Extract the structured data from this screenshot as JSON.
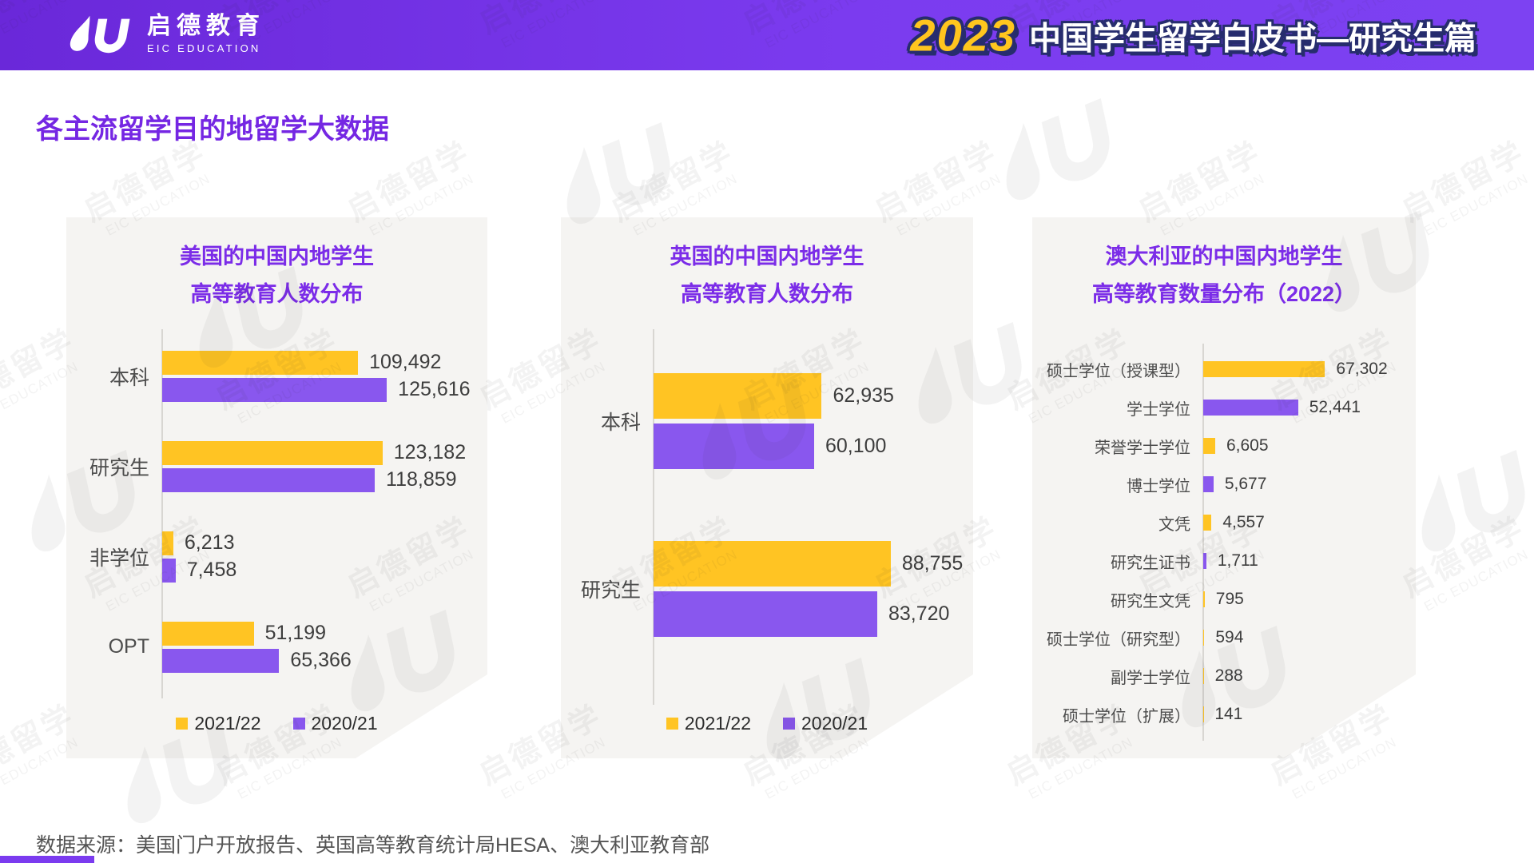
{
  "header": {
    "logo_cn": "启德教育",
    "logo_en": "EIC EDUCATION",
    "title_year": "2023",
    "title_text": "中国学生留学白皮书—研究生篇"
  },
  "page_title": "各主流留学目的地留学大数据",
  "footer_source": "数据来源：美国门户开放报告、英国高等教育统计局HESA、澳大利亚教育部",
  "watermark": {
    "cn": "启德留学",
    "en": "EIC EDUCATION"
  },
  "colors": {
    "yellow": "#FFC423",
    "purple": "#8957EE",
    "header_purple": "#7B3BEF",
    "title_purple": "#7B2CE8"
  },
  "legend": [
    {
      "label": "2021/22",
      "color": "#FFC423"
    },
    {
      "label": "2020/21",
      "color": "#8957EE"
    }
  ],
  "chart_data": [
    {
      "type": "bar",
      "orientation": "horizontal",
      "title_lines": [
        "美国的中国内地学生",
        "高等教育人数分布"
      ],
      "categories": [
        "本科",
        "研究生",
        "非学位",
        "OPT"
      ],
      "series": [
        {
          "name": "2021/22",
          "color": "#FFC423",
          "values": [
            109492,
            123182,
            6213,
            51199
          ],
          "labels": [
            "109,492",
            "123,182",
            "6,213",
            "51,199"
          ]
        },
        {
          "name": "2020/21",
          "color": "#8957EE",
          "values": [
            125616,
            118859,
            7458,
            65366
          ],
          "labels": [
            "125,616",
            "118,859",
            "7,458",
            "65,366"
          ]
        }
      ],
      "xmax": 130000,
      "grid": false,
      "legend_position": "bottom"
    },
    {
      "type": "bar",
      "orientation": "horizontal",
      "title_lines": [
        "英国的中国内地学生",
        "高等教育人数分布"
      ],
      "categories": [
        "本科",
        "研究生"
      ],
      "series": [
        {
          "name": "2021/22",
          "color": "#FFC423",
          "values": [
            62935,
            88755
          ],
          "labels": [
            "62,935",
            "88,755"
          ]
        },
        {
          "name": "2020/21",
          "color": "#8957EE",
          "values": [
            60100,
            83720
          ],
          "labels": [
            "60,100",
            "83,720"
          ]
        }
      ],
      "xmax": 90000,
      "grid": false,
      "legend_position": "bottom"
    },
    {
      "type": "bar",
      "orientation": "horizontal",
      "title_lines": [
        "澳大利亚的中国内地学生",
        "高等教育数量分布（2022）"
      ],
      "categories": [
        "硕士学位（授课型）",
        "学士学位",
        "荣誉学士学位",
        "博士学位",
        "文凭",
        "研究生证书",
        "研究生文凭",
        "硕士学位（研究型）",
        "副学士学位",
        "硕士学位（扩展）"
      ],
      "values": [
        67302,
        52441,
        6605,
        5677,
        4557,
        1711,
        795,
        594,
        288,
        141
      ],
      "value_labels": [
        "67,302",
        "52,441",
        "6,605",
        "5,677",
        "4,557",
        "1,711",
        "795",
        "594",
        "288",
        "141"
      ],
      "bar_colors": [
        "#FFC423",
        "#8957EE",
        "#FFC423",
        "#8957EE",
        "#FFC423",
        "#8957EE",
        "#FFC423",
        "#FFC423",
        "#FFC423",
        "#FFC423"
      ],
      "xmax": 68000,
      "grid": false,
      "legend_position": "none"
    }
  ]
}
